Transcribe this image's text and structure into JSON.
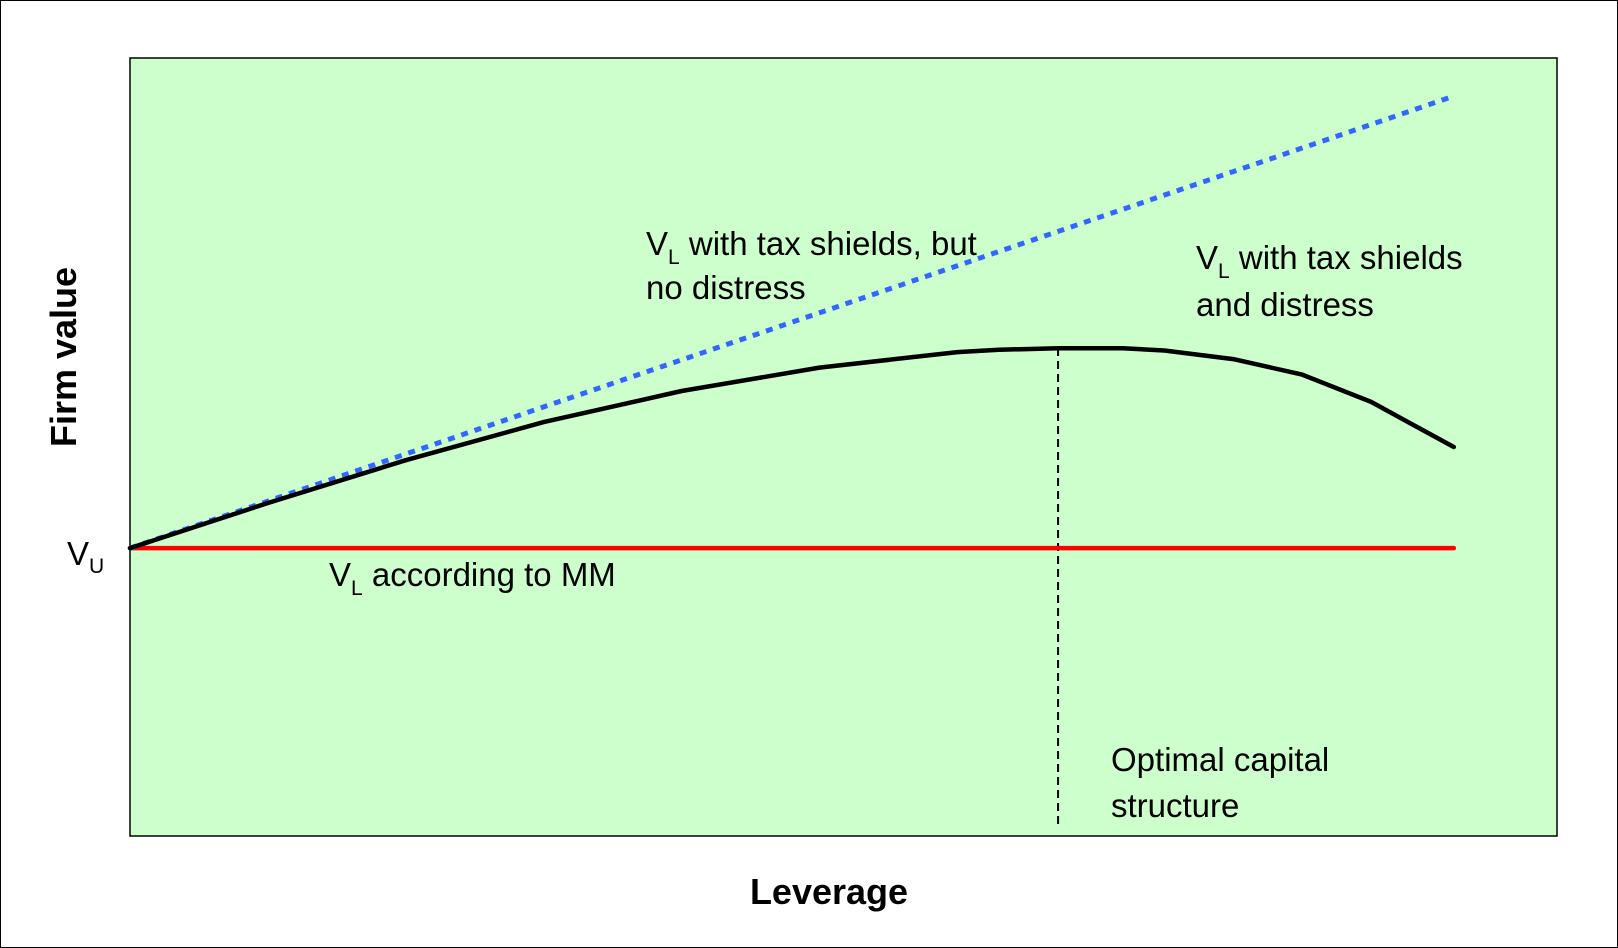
{
  "chart_data": {
    "type": "line",
    "xlabel": "Leverage",
    "ylabel": "Firm value",
    "x_range": [
      0,
      10
    ],
    "y_range": [
      0,
      10
    ],
    "grid": false,
    "background_color": "#ccffcc",
    "y_tick": {
      "main": "V",
      "sub": "U",
      "value": 3.7
    },
    "series": [
      {
        "key": "mm",
        "color": "#ff0000",
        "style": "solid",
        "x": [
          0,
          9.6
        ],
        "y": [
          3.7,
          3.7
        ]
      },
      {
        "key": "tax_shields",
        "color": "#3366ff",
        "style": "dotted",
        "x": [
          0,
          1,
          2,
          3,
          4,
          5,
          6,
          7,
          8,
          9,
          9.6
        ],
        "y": [
          3.7,
          4.305,
          4.91,
          5.515,
          6.12,
          6.725,
          7.33,
          7.935,
          8.54,
          9.145,
          9.51
        ]
      },
      {
        "key": "distress",
        "color": "#000000",
        "style": "solid",
        "x": [
          0,
          1,
          2,
          3,
          4,
          5,
          6,
          6.3,
          6.73,
          7.2,
          7.5,
          8,
          8.5,
          9,
          9.6
        ],
        "y": [
          3.7,
          4.28,
          4.83,
          5.32,
          5.72,
          6.02,
          6.22,
          6.25,
          6.27,
          6.27,
          6.24,
          6.13,
          5.93,
          5.58,
          5.0
        ]
      }
    ],
    "optimal_x": 6.73,
    "annotations": {
      "mm": {
        "main": "V",
        "sub": "L",
        "text": " according to MM"
      },
      "tax": {
        "main": "V",
        "sub": "L",
        "line1": " with tax shields, but",
        "line2": "no distress"
      },
      "distress": {
        "main": "V",
        "sub": "L",
        "line1": " with tax shields",
        "line2": "and distress"
      },
      "optimal": {
        "line1": "Optimal capital",
        "line2": "structure"
      }
    }
  }
}
